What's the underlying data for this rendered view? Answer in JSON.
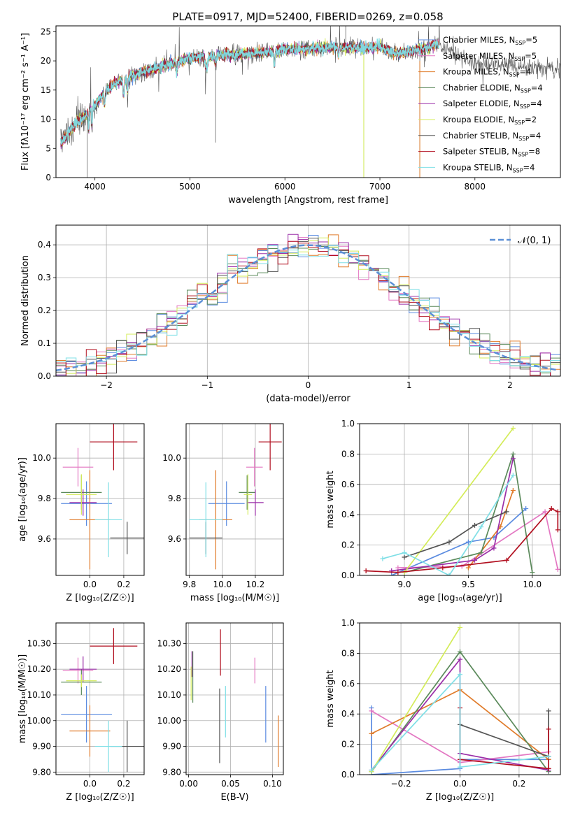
{
  "figure_title": "PLATE=0917, MJD=52400, FIBERID=0269, z=0.058",
  "models": [
    {
      "name": "Chabrier MILES",
      "nssp": 5,
      "color": "#5a8be0"
    },
    {
      "name": "Salpeter MILES",
      "nssp": 5,
      "color": "#e377c2"
    },
    {
      "name": "Kroupa MILES",
      "nssp": 4,
      "color": "#e07b2a"
    },
    {
      "name": "Chabrier ELODIE",
      "nssp": 4,
      "color": "#5b8a5b"
    },
    {
      "name": "Salpeter ELODIE",
      "nssp": 4,
      "color": "#9b2ea8"
    },
    {
      "name": "Kroupa ELODIE",
      "nssp": 2,
      "color": "#d4ec5a"
    },
    {
      "name": "Chabrier STELIB",
      "nssp": 4,
      "color": "#555555"
    },
    {
      "name": "Salpeter STELIB",
      "nssp": 8,
      "color": "#b21020"
    },
    {
      "name": "Kroupa STELIB",
      "nssp": 4,
      "color": "#7fdfe6"
    }
  ],
  "colors": {
    "gauss": "#5b8fd6",
    "grid": "#b0b0b0",
    "spectrum": "#555555"
  },
  "chart_data": [
    {
      "id": "spectrum",
      "type": "line",
      "xlabel": "wavelength [Angstrom, rest frame]",
      "ylabel": "Flux [fλ10⁻¹⁷ erg cm⁻² s⁻¹ A⁻¹]",
      "xlim": [
        3590,
        8900
      ],
      "ylim": [
        0,
        26
      ],
      "xticks": [
        4000,
        5000,
        6000,
        7000,
        8000
      ],
      "yticks": [
        0,
        5,
        10,
        15,
        20,
        25
      ],
      "grid": false,
      "legend": "right",
      "continuum_x": [
        3640,
        3700,
        3800,
        3900,
        4000,
        4100,
        4200,
        4300,
        4400,
        4600,
        4800,
        5000,
        5200,
        5400,
        5600,
        5800,
        6000,
        6200,
        6400,
        6600,
        6800,
        7000,
        7100,
        7200,
        7300,
        7400,
        7500,
        7600,
        7700,
        7800,
        7900,
        8000,
        8100,
        8200,
        8300,
        8400,
        8500,
        8600,
        8700,
        8800,
        8900
      ],
      "continuum_y": [
        6.0,
        7.0,
        9.5,
        10.5,
        12.5,
        14.5,
        16.0,
        16.8,
        17.5,
        18.5,
        19.5,
        20.5,
        20.8,
        21.0,
        21.2,
        21.5,
        22.0,
        22.0,
        22.3,
        22.3,
        22.2,
        22.5,
        21.5,
        21.3,
        21.5,
        22.0,
        22.2,
        23.0,
        21.8,
        21.0,
        20.3,
        19.8,
        19.5,
        19.4,
        19.3,
        19.2,
        19.0,
        18.9,
        18.8,
        18.6,
        18.5
      ],
      "fit_xmax": 7620
    },
    {
      "id": "residuals",
      "type": "histogram",
      "xlabel": "(data-model)/error",
      "ylabel": "Normed distribution",
      "xlim": [
        -2.5,
        2.5
      ],
      "ylim": [
        0,
        0.46
      ],
      "xticks": [
        -2,
        -1,
        0,
        1,
        2
      ],
      "yticks": [
        0.0,
        0.1,
        0.2,
        0.3,
        0.4
      ],
      "grid": true,
      "legend": "top-right",
      "gauss_label": "𝒩(0, 1)",
      "bin_width": 0.1
    },
    {
      "id": "age_vs_Z",
      "type": "errorbar",
      "xlabel": "Z [log₁₀(Z/Z☉)]",
      "ylabel": "age  [log₁₀(age/yr)]",
      "xlim": [
        -0.2,
        0.32
      ],
      "ylim": [
        9.42,
        10.17
      ],
      "xticks": [
        0.0,
        0.2
      ],
      "yticks": [
        9.6,
        9.8,
        10.0
      ],
      "grid": true,
      "points": [
        {
          "x": -0.02,
          "y": 9.775,
          "xerr": 0.15,
          "yerr": 0.11,
          "c": 0
        },
        {
          "x": -0.07,
          "y": 9.955,
          "xerr": 0.09,
          "yerr": 0.095,
          "c": 1
        },
        {
          "x": 0.0,
          "y": 9.695,
          "xerr": 0.12,
          "yerr": 0.245,
          "c": 2
        },
        {
          "x": -0.05,
          "y": 9.83,
          "xerr": 0.12,
          "yerr": 0.085,
          "c": 3
        },
        {
          "x": -0.04,
          "y": 9.78,
          "xerr": 0.08,
          "yerr": 0.065,
          "c": 4
        },
        {
          "x": -0.05,
          "y": 9.82,
          "xerr": 0.09,
          "yerr": 0.1,
          "c": 5
        },
        {
          "x": 0.22,
          "y": 9.605,
          "xerr": 0.1,
          "yerr": 0.08,
          "c": 6
        },
        {
          "x": 0.14,
          "y": 10.08,
          "xerr": 0.14,
          "yerr": 0.14,
          "c": 7
        },
        {
          "x": 0.11,
          "y": 9.695,
          "xerr": 0.08,
          "yerr": 0.185,
          "c": 8
        }
      ]
    },
    {
      "id": "age_vs_mass",
      "type": "errorbar",
      "xlabel": "mass [log₁₀(M/M☉)]",
      "ylabel": "",
      "xlim": [
        9.78,
        10.37
      ],
      "ylim": [
        9.42,
        10.17
      ],
      "xticks": [
        9.8,
        10.0,
        10.2
      ],
      "yticks": [
        9.6,
        9.8,
        10.0
      ],
      "grid": true,
      "points": [
        {
          "x": 10.025,
          "y": 9.775,
          "xerr": 0.11,
          "yerr": 0.11,
          "c": 0
        },
        {
          "x": 10.195,
          "y": 9.955,
          "xerr": 0.05,
          "yerr": 0.095,
          "c": 1
        },
        {
          "x": 9.96,
          "y": 9.695,
          "xerr": 0.1,
          "yerr": 0.245,
          "c": 2
        },
        {
          "x": 10.15,
          "y": 9.83,
          "xerr": 0.05,
          "yerr": 0.085,
          "c": 3
        },
        {
          "x": 10.2,
          "y": 9.78,
          "xerr": 0.05,
          "yerr": 0.065,
          "c": 4
        },
        {
          "x": 10.155,
          "y": 9.82,
          "xerr": 0.025,
          "yerr": 0.1,
          "c": 5
        },
        {
          "x": 9.9,
          "y": 9.605,
          "xerr": 0.1,
          "yerr": 0.08,
          "c": 6
        },
        {
          "x": 10.29,
          "y": 10.08,
          "xerr": 0.07,
          "yerr": 0.14,
          "c": 7
        },
        {
          "x": 9.9,
          "y": 9.695,
          "xerr": 0.1,
          "yerr": 0.185,
          "c": 8
        }
      ]
    },
    {
      "id": "weight_vs_age",
      "type": "line",
      "xlabel": "age  [log₁₀(age/yr)]",
      "ylabel": "mass weight",
      "xlim": [
        8.65,
        10.22
      ],
      "ylim": [
        0,
        1
      ],
      "xticks": [
        9.0,
        9.5,
        10.0
      ],
      "yticks": [
        0.0,
        0.2,
        0.4,
        0.6,
        0.8,
        1.0
      ],
      "grid": true,
      "series": [
        {
          "c": 0,
          "x": [
            8.9,
            9.5,
            9.7,
            9.95
          ],
          "y": [
            0.0,
            0.22,
            0.25,
            0.44
          ]
        },
        {
          "c": 1,
          "x": [
            8.95,
            9.45,
            10.1,
            10.2
          ],
          "y": [
            0.05,
            0.06,
            0.42,
            0.04
          ]
        },
        {
          "c": 2,
          "x": [
            9.5,
            9.75,
            9.85
          ],
          "y": [
            0.05,
            0.32,
            0.56
          ]
        },
        {
          "c": 3,
          "x": [
            9.0,
            9.6,
            9.85,
            10.0
          ],
          "y": [
            0.02,
            0.15,
            0.8,
            0.02
          ]
        },
        {
          "c": 4,
          "x": [
            8.9,
            9.55,
            9.7,
            9.85
          ],
          "y": [
            0.03,
            0.1,
            0.18,
            0.77
          ]
        },
        {
          "c": 5,
          "x": [
            9.0,
            9.85
          ],
          "y": [
            0.02,
            0.97
          ]
        },
        {
          "c": 6,
          "x": [
            9.0,
            9.35,
            9.55,
            9.8
          ],
          "y": [
            0.12,
            0.22,
            0.33,
            0.42
          ]
        },
        {
          "c": 7,
          "x": [
            8.7,
            8.95,
            9.3,
            9.8,
            10.15,
            10.2,
            10.2
          ],
          "y": [
            0.03,
            0.02,
            0.05,
            0.1,
            0.44,
            0.42,
            0.3
          ]
        },
        {
          "c": 8,
          "x": [
            8.83,
            9.0,
            9.35,
            9.6,
            9.85
          ],
          "y": [
            0.11,
            0.15,
            0.0,
            0.32,
            0.66
          ]
        }
      ]
    },
    {
      "id": "mass_vs_Z",
      "type": "errorbar",
      "xlabel": "Z [log₁₀(Z/Z☉)]",
      "ylabel": "mass [log₁₀(M/M☉)]",
      "xlim": [
        -0.2,
        0.32
      ],
      "ylim": [
        9.79,
        10.38
      ],
      "xticks": [
        0.0,
        0.2
      ],
      "yticks": [
        9.8,
        9.9,
        10.0,
        10.1,
        10.2,
        10.3
      ],
      "grid": true,
      "points": [
        {
          "x": -0.02,
          "y": 10.025,
          "xerr": 0.15,
          "yerr": 0.11,
          "c": 0
        },
        {
          "x": -0.07,
          "y": 10.195,
          "xerr": 0.09,
          "yerr": 0.05,
          "c": 1
        },
        {
          "x": 0.0,
          "y": 9.96,
          "xerr": 0.12,
          "yerr": 0.1,
          "c": 2
        },
        {
          "x": -0.05,
          "y": 10.15,
          "xerr": 0.12,
          "yerr": 0.05,
          "c": 3
        },
        {
          "x": -0.04,
          "y": 10.2,
          "xerr": 0.08,
          "yerr": 0.05,
          "c": 4
        },
        {
          "x": -0.05,
          "y": 10.155,
          "xerr": 0.09,
          "yerr": 0.025,
          "c": 5
        },
        {
          "x": 0.22,
          "y": 9.9,
          "xerr": 0.1,
          "yerr": 0.1,
          "c": 6
        },
        {
          "x": 0.14,
          "y": 10.29,
          "xerr": 0.14,
          "yerr": 0.07,
          "c": 7
        },
        {
          "x": 0.11,
          "y": 9.9,
          "xerr": 0.08,
          "yerr": 0.1,
          "c": 8
        }
      ]
    },
    {
      "id": "mass_vs_ebv",
      "type": "errorbar",
      "xlabel": "E(B-V)",
      "ylabel": "",
      "xlim": [
        -0.003,
        0.113
      ],
      "ylim": [
        9.79,
        10.38
      ],
      "xticks": [
        0.0,
        0.05,
        0.1
      ],
      "yticks": [
        9.8,
        9.9,
        10.0,
        10.1,
        10.2,
        10.3
      ],
      "grid": true,
      "points": [
        {
          "x": 0.092,
          "y": 10.025,
          "xerr": 0,
          "yerr": 0.11,
          "c": 0
        },
        {
          "x": 0.079,
          "y": 10.195,
          "xerr": 0,
          "yerr": 0.05,
          "c": 1
        },
        {
          "x": 0.107,
          "y": 9.92,
          "xerr": 0,
          "yerr": 0.1,
          "c": 2
        },
        {
          "x": 0.005,
          "y": 10.17,
          "xerr": 0,
          "yerr": 0.1,
          "c": 3
        },
        {
          "x": 0.004,
          "y": 10.22,
          "xerr": 0,
          "yerr": 0.05,
          "c": 4
        },
        {
          "x": 0.003,
          "y": 10.145,
          "xerr": 0,
          "yerr": 0.065,
          "c": 5
        },
        {
          "x": 0.037,
          "y": 9.98,
          "xerr": 0,
          "yerr": 0.145,
          "c": 6
        },
        {
          "x": 0.038,
          "y": 10.265,
          "xerr": 0,
          "yerr": 0.09,
          "c": 7
        },
        {
          "x": 0.044,
          "y": 10.035,
          "xerr": 0,
          "yerr": 0.1,
          "c": 8
        }
      ]
    },
    {
      "id": "weight_vs_Z",
      "type": "line",
      "xlabel": "Z [log₁₀(Z/Z☉)]",
      "ylabel": "mass weight",
      "xlim": [
        -0.34,
        0.34
      ],
      "ylim": [
        0,
        1
      ],
      "xticks": [
        -0.2,
        0.0,
        0.2
      ],
      "yticks": [
        0.0,
        0.2,
        0.4,
        0.6,
        0.8,
        1.0
      ],
      "grid": true,
      "series": [
        {
          "c": 0,
          "x": [
            -0.3,
            -0.3,
            0.0,
            0.0,
            0.3
          ],
          "y": [
            0.44,
            0.0,
            0.04,
            0.1,
            0.1
          ]
        },
        {
          "c": 1,
          "x": [
            -0.3,
            0.0,
            0.3
          ],
          "y": [
            0.42,
            0.08,
            0.15
          ]
        },
        {
          "c": 2,
          "x": [
            -0.3,
            0.0,
            0.3
          ],
          "y": [
            0.27,
            0.56,
            0.1
          ]
        },
        {
          "c": 3,
          "x": [
            -0.3,
            0.0,
            0.3
          ],
          "y": [
            0.02,
            0.81,
            0.02
          ]
        },
        {
          "c": 4,
          "x": [
            -0.3,
            0.0,
            0.0,
            0.3
          ],
          "y": [
            0.03,
            0.76,
            0.14,
            0.03
          ]
        },
        {
          "c": 5,
          "x": [
            -0.3,
            0.0
          ],
          "y": [
            0.02,
            0.97
          ]
        },
        {
          "c": 6,
          "x": [
            0.0,
            0.3,
            0.3
          ],
          "y": [
            0.33,
            0.12,
            0.42
          ]
        },
        {
          "c": 7,
          "x": [
            0.0,
            0.0,
            0.3,
            0.3
          ],
          "y": [
            0.44,
            0.1,
            0.04,
            0.3
          ]
        },
        {
          "c": 8,
          "x": [
            -0.3,
            0.0,
            0.0,
            0.3
          ],
          "y": [
            0.03,
            0.66,
            0.05,
            0.12
          ]
        }
      ]
    }
  ]
}
